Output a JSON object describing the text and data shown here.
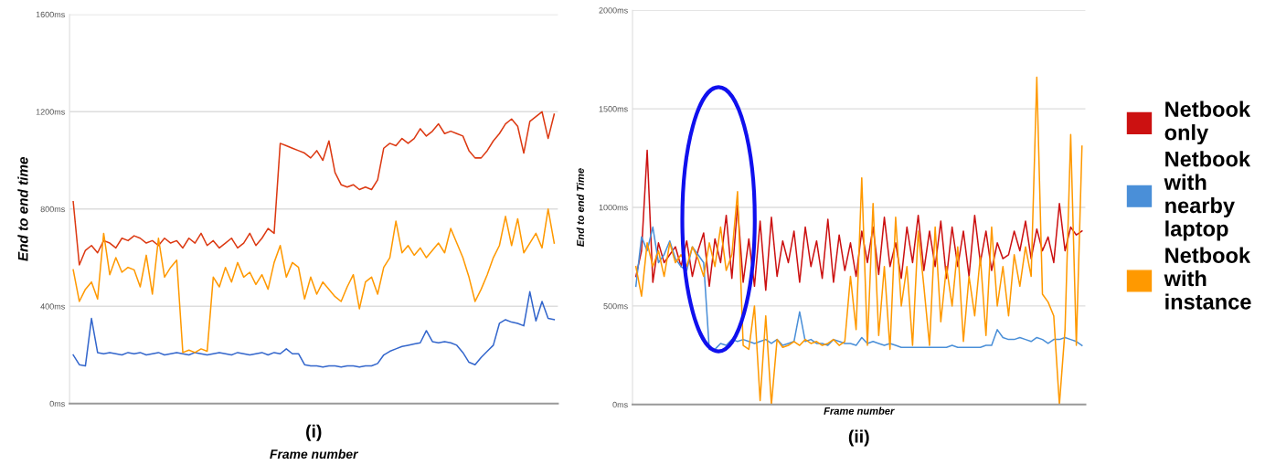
{
  "chart_data": [
    {
      "type": "line",
      "title": "(i)",
      "xlabel": "Frame number",
      "ylabel": "End to end time",
      "categories": [
        null,
        null,
        null,
        null,
        null,
        null,
        null,
        null,
        null,
        null,
        null,
        null,
        null,
        null,
        null,
        null,
        null,
        null,
        null,
        null,
        null,
        null,
        null,
        null,
        null,
        null,
        null,
        null,
        null,
        null,
        null,
        null,
        null,
        null,
        null,
        null,
        null,
        null,
        null,
        null,
        null,
        null,
        null,
        null,
        null,
        null,
        null,
        null,
        null,
        null,
        null,
        null,
        null,
        null,
        null,
        null,
        null,
        null,
        null,
        null,
        null,
        null,
        null,
        null,
        null,
        null,
        null,
        null,
        null,
        null,
        null,
        null,
        null,
        null,
        null,
        null,
        null,
        null,
        null,
        null
      ],
      "series": [
        {
          "color": "#dc3912",
          "values": [
            830,
            570,
            630,
            650,
            620,
            670,
            660,
            640,
            680,
            670,
            690,
            680,
            660,
            670,
            650,
            680,
            660,
            670,
            640,
            680,
            660,
            700,
            650,
            670,
            640,
            660,
            680,
            640,
            660,
            700,
            650,
            680,
            720,
            700,
            1070,
            1060,
            1050,
            1040,
            1030,
            1010,
            1040,
            1000,
            1080,
            950,
            900,
            890,
            900,
            880,
            890,
            880,
            920,
            1050,
            1070,
            1060,
            1090,
            1070,
            1090,
            1130,
            1100,
            1120,
            1150,
            1110,
            1120,
            1110,
            1100,
            1040,
            1010,
            1010,
            1040,
            1080,
            1110,
            1150,
            1170,
            1140,
            1030,
            1160,
            1180,
            1200,
            1090,
            1190
          ]
        },
        {
          "color": "#3366cc",
          "values": [
            200,
            160,
            155,
            350,
            210,
            205,
            210,
            205,
            200,
            210,
            205,
            210,
            200,
            205,
            210,
            200,
            205,
            210,
            205,
            200,
            210,
            205,
            200,
            205,
            210,
            205,
            200,
            210,
            205,
            200,
            205,
            210,
            200,
            210,
            205,
            225,
            205,
            205,
            160,
            155,
            155,
            150,
            155,
            155,
            150,
            155,
            155,
            150,
            155,
            155,
            165,
            200,
            215,
            225,
            235,
            240,
            245,
            250,
            300,
            255,
            250,
            255,
            250,
            240,
            210,
            170,
            160,
            190,
            215,
            240,
            330,
            345,
            335,
            330,
            320,
            460,
            340,
            420,
            350,
            345
          ]
        },
        {
          "color": "#ff9900",
          "values": [
            550,
            420,
            470,
            500,
            430,
            700,
            530,
            600,
            540,
            560,
            550,
            480,
            610,
            450,
            680,
            520,
            560,
            590,
            210,
            220,
            210,
            225,
            215,
            520,
            480,
            560,
            500,
            580,
            520,
            540,
            490,
            530,
            470,
            580,
            650,
            520,
            580,
            560,
            430,
            520,
            450,
            500,
            470,
            440,
            420,
            480,
            530,
            390,
            500,
            520,
            450,
            560,
            600,
            750,
            620,
            650,
            610,
            640,
            600,
            630,
            660,
            620,
            720,
            660,
            600,
            520,
            420,
            470,
            530,
            600,
            650,
            770,
            650,
            760,
            620,
            660,
            700,
            640,
            800,
            660
          ]
        }
      ],
      "ylim": [
        0,
        1600
      ],
      "yticks": [
        {
          "value": 0,
          "label": "0ms"
        },
        {
          "value": 400,
          "label": "400ms"
        },
        {
          "value": 800,
          "label": "800ms"
        },
        {
          "value": 1200,
          "label": "1200ms"
        },
        {
          "value": 1600,
          "label": "1600ms"
        }
      ],
      "grid": "y",
      "tick_labels": "y",
      "line_style": "solid"
    },
    {
      "type": "line",
      "title": "(ii)",
      "xlabel": "Frame number",
      "ylabel": "End to end Time",
      "categories": [
        null,
        null,
        null,
        null,
        null,
        null,
        null,
        null,
        null,
        null,
        null,
        null,
        null,
        null,
        null,
        null,
        null,
        null,
        null,
        null,
        null,
        null,
        null,
        null,
        null,
        null,
        null,
        null,
        null,
        null,
        null,
        null,
        null,
        null,
        null,
        null,
        null,
        null,
        null,
        null,
        null,
        null,
        null,
        null,
        null,
        null,
        null,
        null,
        null,
        null,
        null,
        null,
        null,
        null,
        null,
        null,
        null,
        null,
        null,
        null,
        null,
        null,
        null,
        null,
        null,
        null,
        null,
        null,
        null,
        null,
        null,
        null,
        null,
        null,
        null,
        null,
        null,
        null,
        null,
        null
      ],
      "series": [
        {
          "name": "Netbook only",
          "color": "#cc1111",
          "values": [
            650,
            780,
            1290,
            620,
            820,
            720,
            760,
            800,
            700,
            830,
            650,
            780,
            870,
            600,
            840,
            720,
            960,
            640,
            1010,
            620,
            840,
            600,
            930,
            580,
            950,
            650,
            830,
            720,
            880,
            620,
            900,
            700,
            830,
            640,
            940,
            620,
            860,
            680,
            820,
            650,
            880,
            720,
            900,
            660,
            950,
            700,
            820,
            640,
            900,
            720,
            960,
            680,
            880,
            700,
            930,
            640,
            900,
            700,
            880,
            650,
            960,
            720,
            880,
            680,
            820,
            740,
            760,
            880,
            780,
            930,
            740,
            890,
            780,
            850,
            720,
            1020,
            780,
            900,
            860,
            880
          ]
        },
        {
          "name": "Netbook with nearby laptop",
          "color": "#4a8fd8",
          "values": [
            600,
            850,
            780,
            900,
            720,
            760,
            830,
            740,
            700,
            680,
            800,
            760,
            720,
            280,
            280,
            310,
            300,
            330,
            320,
            330,
            320,
            310,
            320,
            330,
            310,
            330,
            300,
            310,
            320,
            470,
            320,
            330,
            310,
            310,
            300,
            330,
            320,
            310,
            310,
            300,
            340,
            310,
            320,
            310,
            300,
            310,
            300,
            290,
            290,
            290,
            290,
            290,
            290,
            290,
            290,
            290,
            300,
            290,
            290,
            290,
            290,
            290,
            300,
            300,
            380,
            340,
            330,
            330,
            340,
            330,
            320,
            340,
            330,
            310,
            330,
            330,
            340,
            330,
            320,
            300
          ]
        },
        {
          "name": "Netbook with instance",
          "color": "#ff9900",
          "values": [
            700,
            550,
            820,
            700,
            780,
            650,
            820,
            720,
            760,
            700,
            800,
            740,
            650,
            820,
            700,
            900,
            680,
            760,
            1080,
            300,
            280,
            500,
            20,
            450,
            0,
            330,
            290,
            300,
            320,
            300,
            330,
            310,
            320,
            300,
            310,
            330,
            300,
            320,
            650,
            380,
            1150,
            300,
            1020,
            350,
            700,
            280,
            950,
            500,
            700,
            300,
            880,
            600,
            300,
            900,
            420,
            700,
            500,
            800,
            320,
            650,
            450,
            750,
            350,
            900,
            500,
            700,
            450,
            760,
            600,
            800,
            650,
            1660,
            560,
            520,
            450,
            0,
            380,
            1370,
            300,
            1310
          ]
        }
      ],
      "ylim": [
        0,
        2000
      ],
      "yticks": [
        {
          "value": 0,
          "label": "0ms"
        },
        {
          "value": 500,
          "label": "500ms"
        },
        {
          "value": 1000,
          "label": "1000ms"
        },
        {
          "value": 1500,
          "label": "1500ms"
        },
        {
          "value": 2000,
          "label": "2000ms"
        }
      ],
      "grid": "y",
      "tick_labels": "y",
      "line_style": "solid",
      "legend": "right"
    }
  ]
}
